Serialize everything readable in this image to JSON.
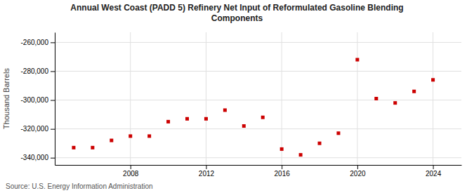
{
  "chart_data": {
    "type": "scatter",
    "title": "Annual West Coast (PADD 5) Refinery Net Input of Reformulated Gasoline Blending\nComponents",
    "y_label": "Thousand Barrels",
    "source": "Source: U.S. Energy Information Administration",
    "x": [
      2005,
      2006,
      2007,
      2008,
      2009,
      2010,
      2011,
      2012,
      2013,
      2014,
      2015,
      2016,
      2017,
      2018,
      2019,
      2020,
      2021,
      2022,
      2023,
      2024
    ],
    "values": [
      -333000,
      -333000,
      -328000,
      -325000,
      -325000,
      -315000,
      -313000,
      -313000,
      -307000,
      -318000,
      -312000,
      -334000,
      -338000,
      -330000,
      -323000,
      -272000,
      -299000,
      -302000,
      -294000,
      -286000
    ],
    "color": "#cc0000",
    "marker": "square",
    "xlim": [
      2004.0,
      2025.5
    ],
    "xticks": [
      2008,
      2012,
      2016,
      2020,
      2024
    ],
    "ylim": [
      -345000,
      -253000
    ],
    "yticks": [
      {
        "value": -340000,
        "label": "-340,000"
      },
      {
        "value": -320000,
        "label": "-320,000"
      },
      {
        "value": -300000,
        "label": "-300,000"
      },
      {
        "value": -280000,
        "label": "-280,000"
      },
      {
        "value": -260000,
        "label": "-260,000"
      }
    ],
    "grid": true
  }
}
